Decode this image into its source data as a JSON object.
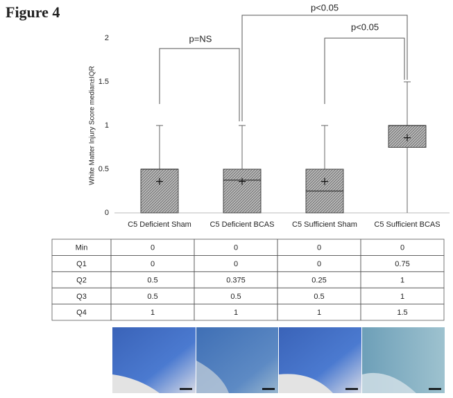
{
  "figure_title": "Figure 4",
  "chart_data": {
    "type": "box",
    "ylabel": "White Matter Injury Score median±IQR",
    "categories": [
      "C5 Deficient  Sham",
      "C5 Deficient BCAS",
      "C5 Sufficient Sham",
      "C5 Sufficient BCAS"
    ],
    "min": [
      0,
      0,
      0,
      0
    ],
    "q1": [
      0,
      0,
      0,
      0.75
    ],
    "median": [
      0.5,
      0.375,
      0.25,
      1
    ],
    "q3": [
      0.5,
      0.5,
      0.5,
      1
    ],
    "max": [
      1,
      1,
      1,
      1.5
    ],
    "mean": [
      0.36,
      0.36,
      0.36,
      0.86
    ],
    "color": "#9a9a9a",
    "ylim": [
      0,
      2
    ],
    "yticks": [
      0,
      0.5,
      1,
      1.5,
      2
    ],
    "annotations": [
      "p=NS",
      "p<0.05",
      "p<0.05"
    ]
  },
  "table": {
    "rows": [
      [
        "Min",
        "0",
        "0",
        "0",
        "0"
      ],
      [
        "Q1",
        "0",
        "0",
        "0",
        "0.75"
      ],
      [
        "Q2",
        "0.5",
        "0.375",
        "0.25",
        "1"
      ],
      [
        "Q3",
        "0.5",
        "0.5",
        "0.5",
        "1"
      ],
      [
        "Q4",
        "1",
        "1",
        "1",
        "1.5"
      ]
    ]
  }
}
